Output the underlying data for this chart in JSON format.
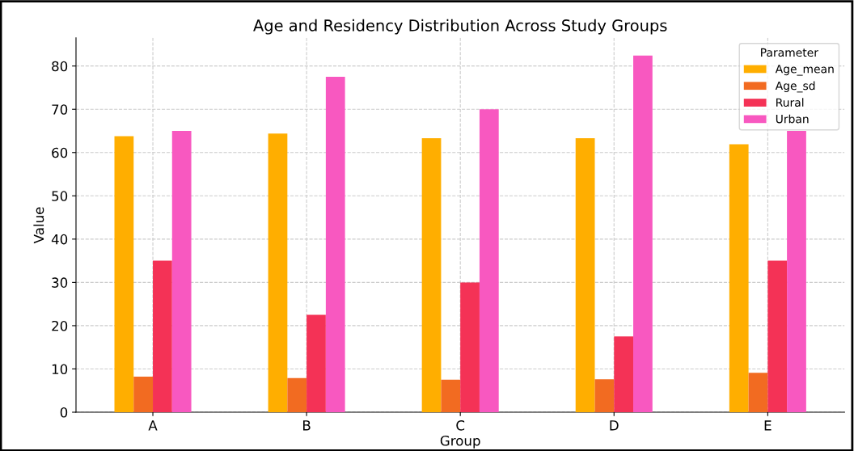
{
  "chart_data": {
    "type": "bar",
    "title": "Age and Residency Distribution Across Study Groups",
    "xlabel": "Group",
    "ylabel": "Value",
    "legend_title": "Parameter",
    "categories": [
      "A",
      "B",
      "C",
      "D",
      "E"
    ],
    "series": [
      {
        "name": "Age_mean",
        "color": "#ffae00",
        "values": [
          63.8,
          64.4,
          63.3,
          63.3,
          61.9
        ]
      },
      {
        "name": "Age_sd",
        "color": "#f26b21",
        "values": [
          8.2,
          7.9,
          7.5,
          7.6,
          9.1
        ]
      },
      {
        "name": "Rural",
        "color": "#f43256",
        "values": [
          35,
          22.5,
          30,
          17.5,
          35
        ]
      },
      {
        "name": "Urban",
        "color": "#f858c0",
        "values": [
          65,
          77.5,
          70,
          82.4,
          65
        ]
      }
    ],
    "ylim": [
      0,
      86.5
    ],
    "yticks": [
      0,
      10,
      20,
      30,
      40,
      50,
      60,
      70,
      80
    ],
    "grid": true,
    "legend": "top right"
  }
}
